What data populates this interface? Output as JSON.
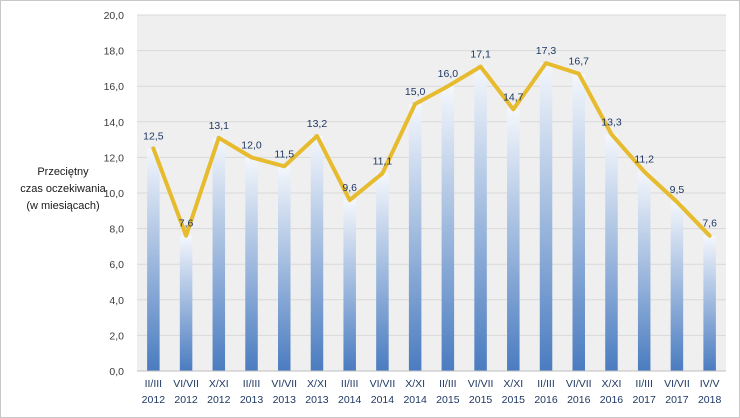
{
  "chart_data": {
    "type": "bar",
    "title": "",
    "ylabel_lines": [
      "Przeciętny",
      "czas oczekiwania",
      "(w miesiącach)"
    ],
    "xlabel": "",
    "ylim": [
      0,
      20
    ],
    "y_ticks": [
      "0,0",
      "2,0",
      "4,0",
      "6,0",
      "8,0",
      "10,0",
      "12,0",
      "14,0",
      "16,0",
      "18,0",
      "20,0"
    ],
    "grid": true,
    "categories": [
      {
        "period": "II/III",
        "year": "2012"
      },
      {
        "period": "VI/VII",
        "year": "2012"
      },
      {
        "period": "X/XI",
        "year": "2012"
      },
      {
        "period": "II/III",
        "year": "2013"
      },
      {
        "period": "VI/VII",
        "year": "2013"
      },
      {
        "period": "X/XI",
        "year": "2013"
      },
      {
        "period": "II/III",
        "year": "2014"
      },
      {
        "period": "VI/VII",
        "year": "2014"
      },
      {
        "period": "X/XI",
        "year": "2014"
      },
      {
        "period": "II/III",
        "year": "2015"
      },
      {
        "period": "VI/VII",
        "year": "2015"
      },
      {
        "period": "X/XI",
        "year": "2015"
      },
      {
        "period": "II/III",
        "year": "2016"
      },
      {
        "period": "VI/VII",
        "year": "2016"
      },
      {
        "period": "X/XI",
        "year": "2016"
      },
      {
        "period": "II/III",
        "year": "2017"
      },
      {
        "period": "VI/VII",
        "year": "2017"
      },
      {
        "period": "IV/V",
        "year": "2018"
      }
    ],
    "values": [
      12.5,
      7.6,
      13.1,
      12.0,
      11.5,
      13.2,
      9.6,
      11.1,
      15.0,
      16.0,
      17.1,
      14.7,
      17.3,
      16.7,
      13.3,
      11.2,
      9.5,
      7.6
    ],
    "value_labels": [
      "12,5",
      "7,6",
      "13,1",
      "12,0",
      "11,5",
      "13,2",
      "9,6",
      "11,1",
      "15,0",
      "16,0",
      "17,1",
      "14,7",
      "17,3",
      "16,7",
      "13,3",
      "11,2",
      "9,5",
      "7,6"
    ],
    "line_series": true,
    "colors": {
      "bar_top": "#f4f7fc",
      "bar_bottom": "#4a7cc0",
      "line": "#e6bb2e",
      "plot_bg": "#efefef",
      "grid": "#d9d9d9"
    }
  }
}
